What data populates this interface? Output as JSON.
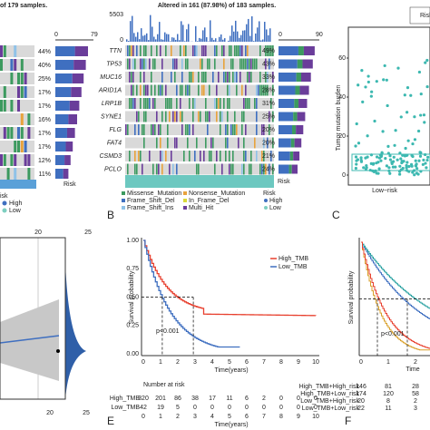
{
  "panelA": {
    "title": "of 179 samples.",
    "axis_min": "0",
    "axis_max": "79",
    "percents": [
      "44%",
      "40%",
      "25%",
      "17%",
      "17%",
      "16%",
      "17%",
      "17%",
      "12%",
      "11%"
    ],
    "legend_title": "isk",
    "legend": [
      "High",
      "Low"
    ],
    "risk_label": "Risk"
  },
  "panelB": {
    "label": "B",
    "title": "Altered in 161 (87.98%) of 183 samples.",
    "tmb_max": "5503",
    "tmb_min": "0",
    "genes": [
      "TTN",
      "TP53",
      "MUC16",
      "ARID1A",
      "LRP1B",
      "SYNE1",
      "FLG",
      "FAT4",
      "CSMD3",
      "PCLO"
    ],
    "percents": [
      "49%",
      "43%",
      "33%",
      "28%",
      "31%",
      "25%",
      "20%",
      "20%",
      "21%",
      "24%"
    ],
    "axis_min": "0",
    "axis_max": "90",
    "risk_label": "Risk",
    "legend": [
      "Missense_Mutation",
      "Nonsense_Mutation",
      "Frame_Shift_Del",
      "In_Frame_Del",
      "Frame_Shift_Ins",
      "Multi_Hit"
    ],
    "legend_risk_title": "Risk",
    "legend_risk": [
      "High",
      "Low"
    ]
  },
  "panelC": {
    "label": "C",
    "y_label": "Tumor mutation burden",
    "yticks": [
      "0",
      "20",
      "40",
      "60"
    ],
    "x_label": "Low−risk",
    "legend_title": "Risk"
  },
  "panelD": {
    "ticks_top": [
      "20",
      "25"
    ],
    "ticks_bottom": [
      "20",
      "25"
    ]
  },
  "panelE": {
    "label": "E",
    "legend": [
      "High_TMB",
      "Low_TMB"
    ],
    "y_label": "Survival probability",
    "yticks": [
      "0.00",
      "0.25",
      "0.50",
      "0.75",
      "1.00"
    ],
    "p_value": "p<0.001",
    "xticks": [
      "0",
      "1",
      "2",
      "3",
      "4",
      "5",
      "6",
      "7",
      "8",
      "9",
      "10"
    ],
    "x_label": "Time(years)",
    "risk_title": "Number at risk",
    "risk_rows": [
      {
        "name": "High_TMB",
        "counts": [
          "320",
          "201",
          "86",
          "38",
          "17",
          "11",
          "6",
          "2",
          "0",
          "0",
          "0"
        ]
      },
      {
        "name": "Low_TMB",
        "counts": [
          "42",
          "19",
          "5",
          "0",
          "0",
          "0",
          "0",
          "0",
          "0",
          "0",
          "0"
        ]
      }
    ]
  },
  "panelF": {
    "label": "F",
    "y_label": "Survival probability",
    "p_value": "p<0.001",
    "xticks": [
      "0",
      "1",
      "2"
    ],
    "x_label": "Time",
    "risk_rows": [
      {
        "name": "High_TMB+High_risk",
        "counts": [
          "146",
          "81",
          "28"
        ]
      },
      {
        "name": "High_TMB+Low_risk",
        "counts": [
          "174",
          "120",
          "58"
        ]
      },
      {
        "name": "Low_TMB+High_risk",
        "counts": [
          "20",
          "8",
          "2"
        ]
      },
      {
        "name": "Low_TMB+Low_risk",
        "counts": [
          "22",
          "11",
          "3"
        ]
      }
    ]
  }
}
